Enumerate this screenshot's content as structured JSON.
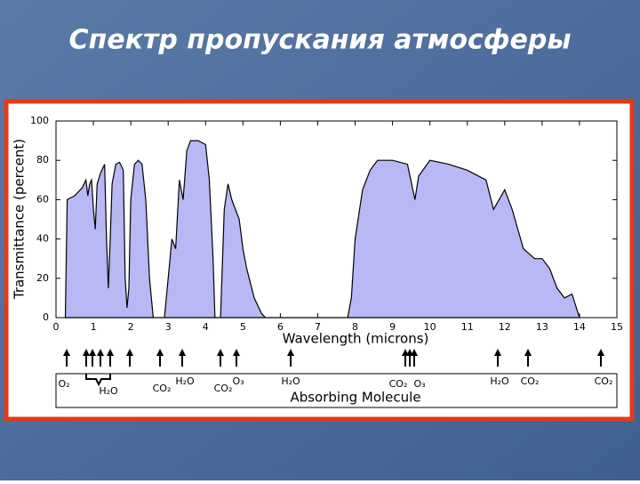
{
  "chart_data": {
    "type": "area",
    "title": "Спектр пропускания атмосферы",
    "xlabel": "Wavelength (microns)",
    "ylabel": "Transmittance (percent)",
    "footer_label": "Absorbing Molecule",
    "color": "#b8b8f4",
    "x": [
      0.25,
      0.3,
      0.5,
      0.7,
      0.8,
      0.85,
      0.9,
      0.95,
      1.0,
      1.05,
      1.1,
      1.2,
      1.3,
      1.35,
      1.4,
      1.45,
      1.5,
      1.6,
      1.7,
      1.8,
      1.85,
      1.9,
      1.95,
      2.0,
      2.1,
      2.2,
      2.3,
      2.4,
      2.5,
      2.6,
      2.9,
      3.0,
      3.1,
      3.2,
      3.3,
      3.4,
      3.5,
      3.6,
      3.8,
      4.0,
      4.1,
      4.2,
      4.25,
      4.4,
      4.5,
      4.6,
      4.7,
      4.8,
      4.9,
      5.0,
      5.1,
      5.3,
      5.5,
      5.6,
      7.8,
      7.9,
      8.0,
      8.2,
      8.4,
      8.6,
      9.0,
      9.4,
      9.6,
      9.7,
      10.0,
      10.5,
      11.0,
      11.5,
      11.7,
      12.0,
      12.2,
      12.5,
      12.8,
      13.0,
      13.2,
      13.4,
      13.6,
      13.8,
      14.0
    ],
    "values": [
      0,
      60,
      62,
      66,
      70,
      62,
      68,
      70,
      55,
      45,
      68,
      74,
      78,
      40,
      15,
      40,
      68,
      78,
      79,
      75,
      20,
      5,
      15,
      60,
      78,
      80,
      78,
      60,
      20,
      0,
      0,
      20,
      40,
      35,
      70,
      60,
      85,
      90,
      90,
      88,
      70,
      30,
      0,
      0,
      55,
      68,
      60,
      55,
      50,
      35,
      25,
      10,
      2,
      0,
      0,
      10,
      40,
      65,
      75,
      80,
      80,
      78,
      60,
      72,
      80,
      78,
      75,
      70,
      55,
      65,
      55,
      35,
      30,
      30,
      25,
      15,
      10,
      12,
      0
    ],
    "xlim": [
      0,
      15
    ],
    "ylim": [
      0,
      100
    ],
    "xticks": [
      0,
      1,
      2,
      3,
      4,
      5,
      6,
      7,
      8,
      9,
      10,
      11,
      12,
      13,
      14,
      15
    ],
    "yticks": [
      0,
      20,
      40,
      60,
      80,
      100
    ],
    "annotations": [
      "O₂",
      "H₂O",
      "CO₂",
      "H₂O",
      "CO₂",
      "O₃",
      "H₂O",
      "CO₂",
      "O₃",
      "H₂O",
      "CO₂",
      "CO₂"
    ]
  }
}
